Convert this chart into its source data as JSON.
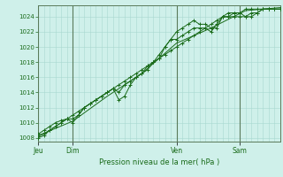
{
  "xlabel": "Pression niveau de la mer( hPa )",
  "background_color": "#cff0ea",
  "grid_color": "#a8d8d0",
  "line_color": "#1a6b1a",
  "tick_label_color": "#1a6b1a",
  "xlabel_color": "#1a6b1a",
  "ylim": [
    1007.5,
    1025.5
  ],
  "yticks": [
    1008,
    1010,
    1012,
    1014,
    1016,
    1018,
    1020,
    1022,
    1024
  ],
  "day_positions": [
    0,
    36,
    144,
    210
  ],
  "day_labels": [
    "Jeu",
    "Dim",
    "Ven",
    "Sam"
  ],
  "xlim": [
    0,
    252
  ],
  "total_hours": 252,
  "grid_minor_step": 6,
  "series1_x": [
    0,
    36,
    72,
    108,
    144,
    180,
    216,
    252
  ],
  "series1_y": [
    1008.3,
    1010.2,
    1013.5,
    1016.5,
    1020.5,
    1022.5,
    1024.8,
    1025.2
  ],
  "series2_x": [
    0,
    6,
    12,
    18,
    24,
    30,
    36,
    42,
    48,
    54,
    60,
    66,
    72,
    78,
    84,
    90,
    96,
    102,
    108,
    114,
    120,
    126,
    132,
    138,
    144,
    150,
    156,
    162,
    168,
    174,
    180,
    186,
    192,
    198,
    204,
    210,
    216,
    222,
    228,
    234,
    240,
    246,
    252
  ],
  "series2_y": [
    1008.5,
    1009,
    1009.5,
    1010,
    1010.3,
    1010.5,
    1010.5,
    1011,
    1012,
    1012.5,
    1013,
    1013.5,
    1014,
    1014.5,
    1013,
    1013.5,
    1015,
    1016,
    1016.5,
    1017,
    1018,
    1018.5,
    1020,
    1021,
    1021,
    1021.5,
    1022,
    1022.5,
    1022.5,
    1022.5,
    1022,
    1023,
    1024,
    1024.5,
    1024.5,
    1024.5,
    1024,
    1024,
    1024.5,
    1025,
    1025,
    1025,
    1025
  ],
  "series3_x": [
    0,
    6,
    12,
    18,
    24,
    30,
    36,
    42,
    48,
    54,
    60,
    66,
    72,
    78,
    84,
    90,
    96,
    102,
    108,
    114,
    120,
    126,
    132,
    138,
    144,
    150,
    156,
    162,
    168,
    174,
    180,
    186,
    192,
    198,
    204,
    210,
    216,
    222,
    228,
    234,
    240,
    246,
    252
  ],
  "series3_y": [
    1008,
    1008.3,
    1009,
    1009.5,
    1010,
    1010.5,
    1010,
    1011,
    1012,
    1012.5,
    1013,
    1013.5,
    1014,
    1014.5,
    1014,
    1015,
    1015.5,
    1016,
    1016.5,
    1017.5,
    1018,
    1019,
    1020,
    1021,
    1022,
    1022.5,
    1023,
    1023.5,
    1023,
    1023,
    1022.5,
    1022.5,
    1024,
    1024,
    1024,
    1024,
    1024,
    1024.5,
    1024.5,
    1025,
    1025,
    1025,
    1025
  ],
  "series4_x": [
    0,
    6,
    12,
    18,
    24,
    30,
    36,
    42,
    48,
    54,
    60,
    66,
    72,
    78,
    84,
    90,
    96,
    102,
    108,
    114,
    120,
    126,
    132,
    138,
    144,
    150,
    156,
    162,
    168,
    174,
    180,
    186,
    192,
    198,
    204,
    210,
    216,
    222,
    228,
    234,
    240,
    246,
    252
  ],
  "series4_y": [
    1008.2,
    1008.5,
    1009,
    1009.5,
    1010,
    1010.5,
    1011,
    1011.5,
    1012,
    1012.5,
    1013,
    1013.5,
    1014,
    1014.5,
    1015,
    1015.5,
    1016,
    1016.5,
    1017,
    1017.5,
    1018,
    1018.5,
    1019,
    1019.5,
    1020,
    1020.5,
    1021,
    1021.5,
    1022,
    1022.5,
    1023,
    1023.5,
    1024,
    1024,
    1024.5,
    1024.5,
    1025,
    1025,
    1025,
    1025,
    1025,
    1025,
    1025
  ]
}
